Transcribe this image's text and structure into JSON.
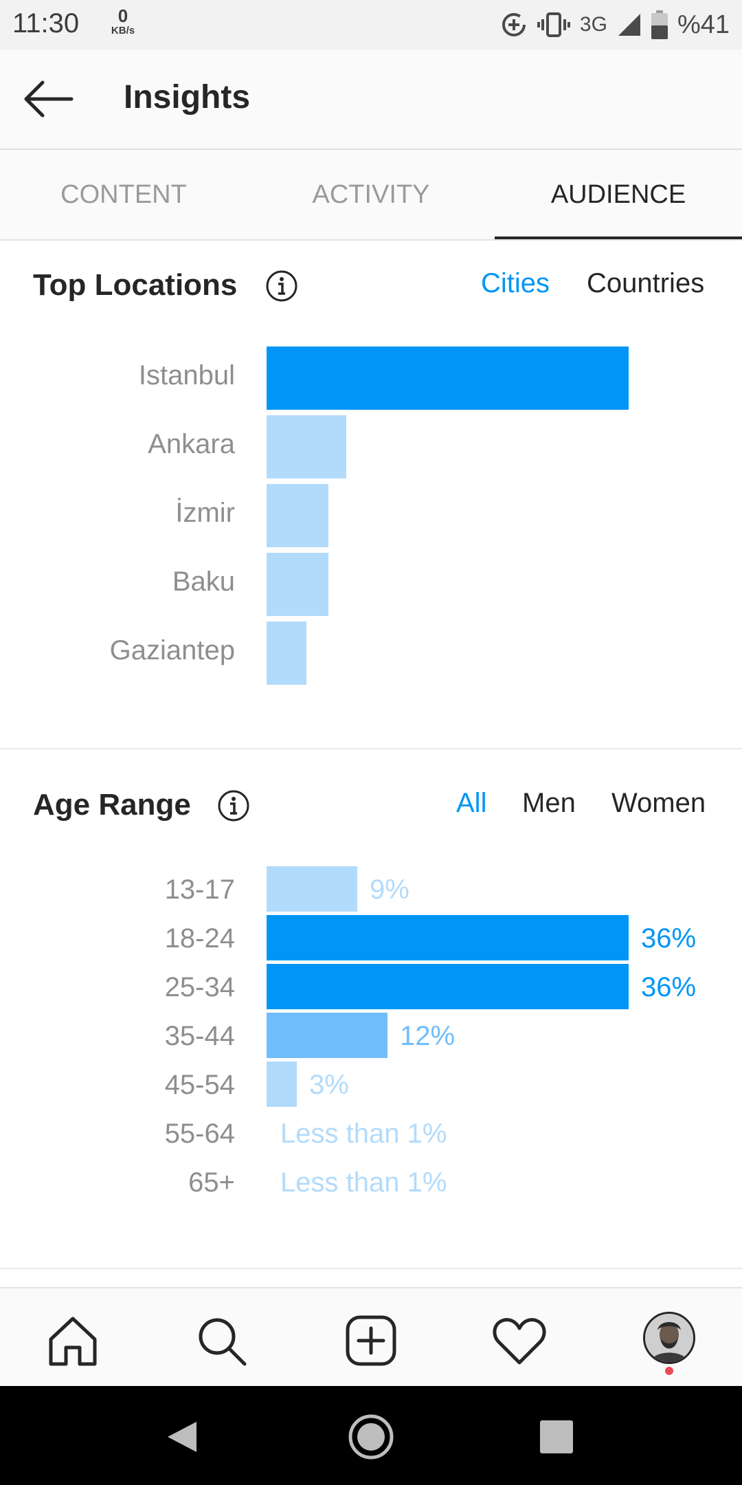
{
  "status_bar": {
    "time": "11:30",
    "speed_value": "0",
    "speed_unit": "KB/s",
    "network": "3G",
    "battery": "%41"
  },
  "header": {
    "title": "Insights"
  },
  "tabs": [
    {
      "label": "CONTENT",
      "active": false
    },
    {
      "label": "ACTIVITY",
      "active": false
    },
    {
      "label": "AUDIENCE",
      "active": true
    }
  ],
  "top_locations": {
    "title": "Top Locations",
    "filters": [
      {
        "label": "Cities",
        "active": true
      },
      {
        "label": "Countries",
        "active": false
      }
    ]
  },
  "age_range": {
    "title": "Age Range",
    "filters": [
      {
        "label": "All",
        "active": true
      },
      {
        "label": "Men",
        "active": false
      },
      {
        "label": "Women",
        "active": false
      }
    ]
  },
  "colors": {
    "accent": "#0095f6",
    "bar_strong": "#0095f6",
    "bar_medium": "#70bdfb",
    "bar_light": "#b2dbfb",
    "text_light": "#b2dbfb"
  },
  "chart_data": [
    {
      "type": "bar",
      "orientation": "horizontal",
      "title": "Top Locations",
      "categories": [
        "Istanbul",
        "Ankara",
        "İzmir",
        "Baku",
        "Gaziantep"
      ],
      "values": [
        100,
        22,
        17,
        17,
        11
      ],
      "value_unit": "relative",
      "highlight": [
        true,
        false,
        false,
        false,
        false
      ]
    },
    {
      "type": "bar",
      "orientation": "horizontal",
      "title": "Age Range",
      "categories": [
        "13-17",
        "18-24",
        "25-34",
        "35-44",
        "45-54",
        "55-64",
        "65+"
      ],
      "values": [
        9,
        36,
        36,
        12,
        3,
        0.5,
        0.5
      ],
      "labels": [
        "9%",
        "36%",
        "36%",
        "12%",
        "3%",
        "Less than 1%",
        "Less than 1%"
      ],
      "tiers": [
        "light",
        "strong",
        "strong",
        "medium",
        "light",
        "none",
        "none"
      ],
      "xlim": [
        0,
        36
      ]
    }
  ]
}
